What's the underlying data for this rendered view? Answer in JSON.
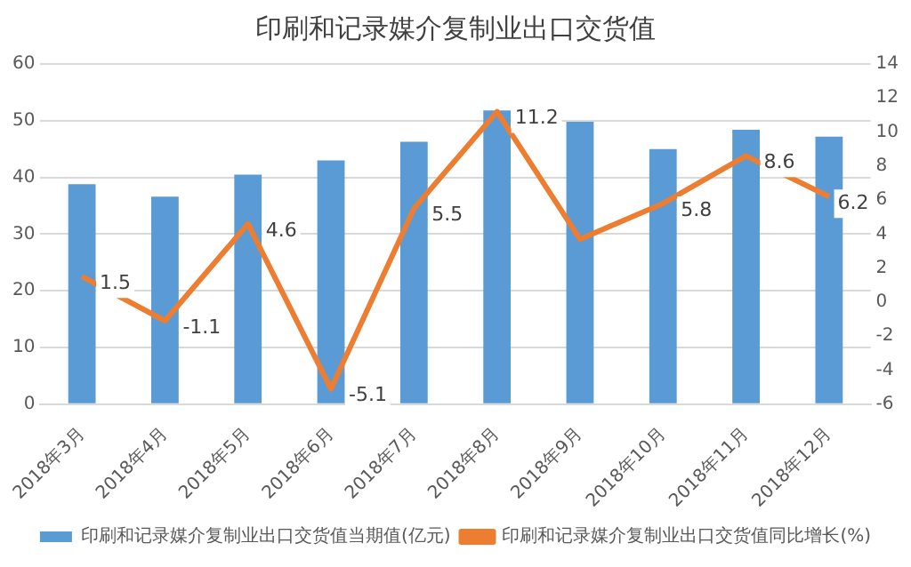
{
  "chart_data": {
    "type": "bar",
    "title": "印刷和记录媒介复制业出口交货值",
    "categories": [
      "2018年3月",
      "2018年4月",
      "2018年5月",
      "2018年6月",
      "2018年7月",
      "2018年8月",
      "2018年9月",
      "2018年10月",
      "2018年11月",
      "2018年12月"
    ],
    "series": [
      {
        "name": "印刷和记录媒介复制业出口交货值当期值(亿元)",
        "color": "#5b9bd5",
        "values": [
          38.8,
          36.6,
          40.5,
          43,
          46.3,
          51.8,
          49.8,
          45,
          48.4,
          47.2
        ]
      },
      {
        "name": "印刷和记录媒介复制业出口交货值同比增长(%)",
        "color": "#ed7d31",
        "type": "line",
        "axis": "y2",
        "values": [
          1.5,
          -1.1,
          4.6,
          -5.1,
          5.5,
          11.2,
          3.7,
          5.8,
          8.6,
          6.2
        ],
        "value_labels": [
          "1.5",
          "-1.1",
          "4.6",
          "-5.1",
          "5.5",
          "11.2",
          null,
          "5.8",
          "8.6",
          "6.2"
        ]
      }
    ],
    "ylim": [
      0,
      60
    ],
    "yticks": [
      0,
      10,
      20,
      30,
      40,
      50,
      60
    ],
    "y2lim": [
      -6,
      14
    ],
    "y2ticks": [
      -6,
      -4,
      -2,
      0,
      2,
      4,
      6,
      8,
      10,
      12,
      14
    ],
    "grid": "y",
    "legend": "bottom",
    "marker": "none"
  }
}
